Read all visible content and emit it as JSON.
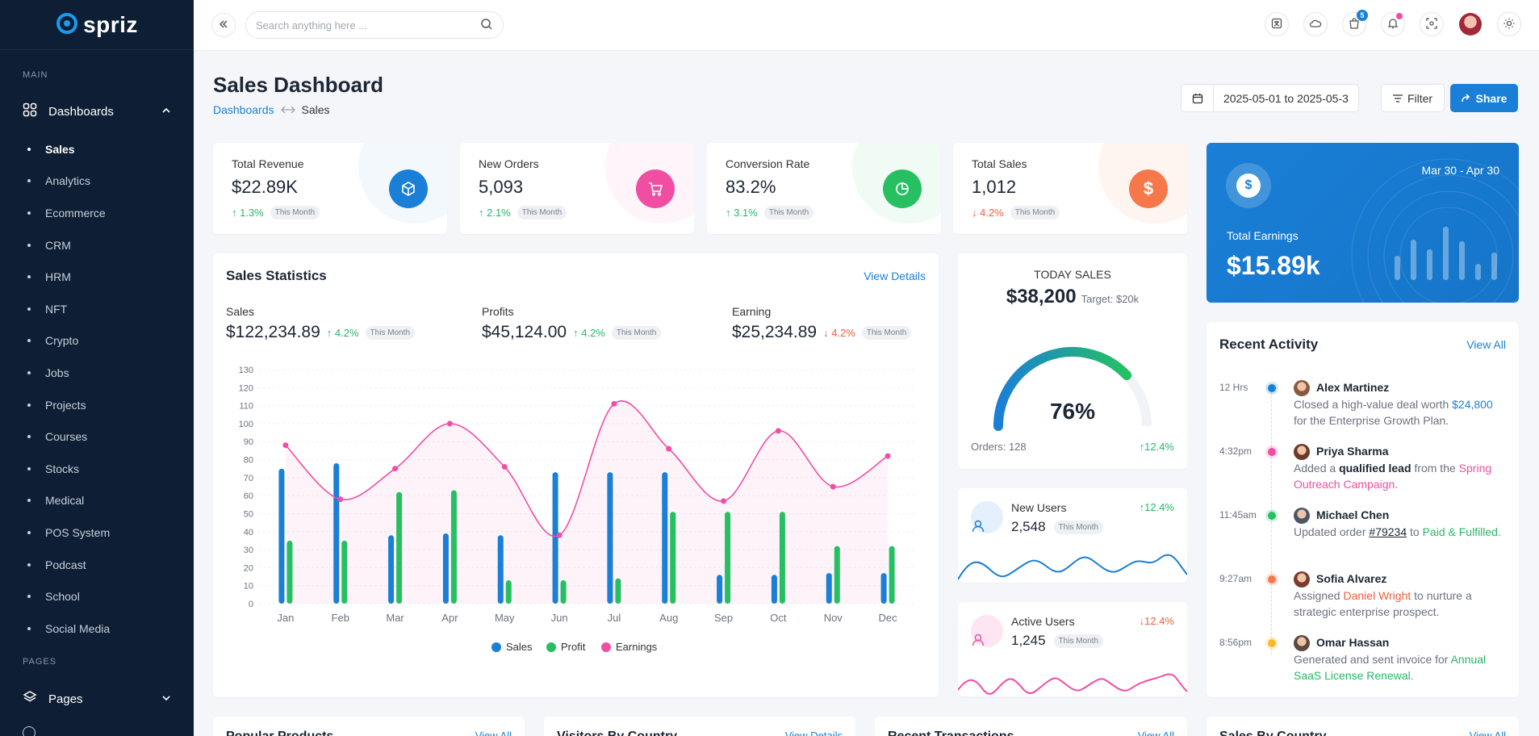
{
  "brand": {
    "name": "spriz"
  },
  "sidebar": {
    "main_label": "MAIN",
    "dashboards_label": "Dashboards",
    "items": [
      {
        "label": "Sales",
        "active": true
      },
      {
        "label": "Analytics"
      },
      {
        "label": "Ecommerce"
      },
      {
        "label": "CRM"
      },
      {
        "label": "HRM"
      },
      {
        "label": "NFT"
      },
      {
        "label": "Crypto"
      },
      {
        "label": "Jobs"
      },
      {
        "label": "Projects"
      },
      {
        "label": "Courses"
      },
      {
        "label": "Stocks"
      },
      {
        "label": "Medical"
      },
      {
        "label": "POS System"
      },
      {
        "label": "Podcast"
      },
      {
        "label": "School"
      },
      {
        "label": "Social Media"
      }
    ],
    "pages_label": "PAGES",
    "pages_item": "Pages"
  },
  "header": {
    "search_placeholder": "Search anything here ...",
    "cart_badge": "5"
  },
  "page": {
    "title": "Sales Dashboard",
    "breadcrumb_parent": "Dashboards",
    "breadcrumb_current": "Sales",
    "date_range": "2025-05-01 to 2025-05-3",
    "filter_label": "Filter",
    "share_label": "Share"
  },
  "kpis": [
    {
      "title": "Total Revenue",
      "value": "$22.89K",
      "change": "↑ 1.3%",
      "period": "This Month",
      "dir": "up",
      "color": "#1a7fd6",
      "icon": "box-icon"
    },
    {
      "title": "New Orders",
      "value": "5,093",
      "change": "↑ 2.1%",
      "period": "This Month",
      "dir": "up",
      "color": "#f04ea3",
      "icon": "cart-icon"
    },
    {
      "title": "Conversion Rate",
      "value": "83.2%",
      "change": "↑ 3.1%",
      "period": "This Month",
      "dir": "up",
      "color": "#26c063",
      "icon": "pie-icon"
    },
    {
      "title": "Total Sales",
      "value": "1,012",
      "change": "↓ 4.2%",
      "period": "This Month",
      "dir": "down",
      "color": "#f6784a",
      "icon": "dollar-icon"
    }
  ],
  "earnings": {
    "date": "Mar 30 - Apr 30",
    "label": "Total Earnings",
    "value": "$15.89k"
  },
  "stats": {
    "title": "Sales Statistics",
    "view_label": "View Details",
    "subs": [
      {
        "label": "Sales",
        "value": "$122,234.89",
        "change": "↑ 4.2%",
        "period": "This Month",
        "dir": "up"
      },
      {
        "label": "Profits",
        "value": "$45,124.00",
        "change": "↑ 4.2%",
        "period": "This Month",
        "dir": "up"
      },
      {
        "label": "Earning",
        "value": "$25,234.89",
        "change": "↓ 4.2%",
        "period": "This Month",
        "dir": "down"
      }
    ]
  },
  "chart_data": {
    "type": "bar",
    "categories": [
      "Jan",
      "Feb",
      "Mar",
      "Apr",
      "May",
      "Jun",
      "Jul",
      "Aug",
      "Sep",
      "Oct",
      "Nov",
      "Dec"
    ],
    "ylim": [
      0,
      130
    ],
    "yticks": [
      0,
      10,
      20,
      30,
      40,
      50,
      60,
      70,
      80,
      90,
      100,
      110,
      120,
      130
    ],
    "series": [
      {
        "name": "Sales",
        "type": "bar",
        "color": "#1a7fd6",
        "values": [
          75,
          78,
          38,
          39,
          38,
          73,
          73,
          73,
          16,
          16,
          17,
          17
        ]
      },
      {
        "name": "Profit",
        "type": "bar",
        "color": "#26c063",
        "values": [
          35,
          35,
          62,
          63,
          13,
          13,
          14,
          51,
          51,
          51,
          32,
          32
        ]
      },
      {
        "name": "Earnings",
        "type": "line",
        "color": "#f04ea3",
        "values": [
          88,
          58,
          75,
          100,
          76,
          38,
          111,
          86,
          57,
          96,
          65,
          82
        ]
      }
    ]
  },
  "today": {
    "label": "TODAY SALES",
    "value": "$38,200",
    "target": "Target: $20k",
    "pct_label": "76%",
    "pct": 76,
    "orders": "Orders: 128",
    "change": "↑12.4%"
  },
  "mini_cards": [
    {
      "title": "New Users",
      "value": "2,548",
      "period": "This Month",
      "change": "↑12.4%",
      "dir": "up",
      "color": "#1a7fd6"
    },
    {
      "title": "Active Users",
      "value": "1,245",
      "period": "This Month",
      "change": "↓12.4%",
      "dir": "down",
      "color": "#f04ea3"
    }
  ],
  "activity": {
    "title": "Recent Activity",
    "view_label": "View All",
    "items": [
      {
        "time": "12 Hrs",
        "name": "Alex Martinez",
        "dot": "#1a7fd6",
        "parts": [
          [
            "Closed a high-value deal worth ",
            "muted"
          ],
          [
            "$24,800",
            "blue"
          ],
          [
            " for the Enterprise Growth Plan.",
            "muted"
          ]
        ]
      },
      {
        "time": "4:32pm",
        "name": "Priya Sharma",
        "dot": "#f04ea3",
        "parts": [
          [
            "Added a ",
            "muted"
          ],
          [
            "qualified lead",
            "dark"
          ],
          [
            " from the ",
            "muted"
          ],
          [
            "Spring Outreach Campaign.",
            "pink"
          ]
        ]
      },
      {
        "time": "11:45am",
        "name": "Michael Chen",
        "dot": "#26c063",
        "parts": [
          [
            "Updated order ",
            "muted"
          ],
          [
            "#79234",
            "link"
          ],
          [
            " to ",
            "muted"
          ],
          [
            "Paid & Fulfilled.",
            "green"
          ]
        ]
      },
      {
        "time": "9:27am",
        "name": "Sofia Alvarez",
        "dot": "#f6784a",
        "parts": [
          [
            "Assigned ",
            "muted"
          ],
          [
            "Daniel Wright",
            "orange"
          ],
          [
            " to nurture a strategic enterprise prospect.",
            "muted"
          ]
        ]
      },
      {
        "time": "8:56pm",
        "name": "Omar Hassan",
        "dot": "#f5b92b",
        "parts": [
          [
            "Generated and sent invoice for ",
            "muted"
          ],
          [
            "Annual SaaS License Renewal.",
            "green"
          ]
        ]
      }
    ]
  },
  "bottom_cards": [
    {
      "title": "Popular Products",
      "link": "View All"
    },
    {
      "title": "Visitors By Country",
      "link": "View Details"
    },
    {
      "title": "Recent Transactions",
      "link": "View All"
    },
    {
      "title": "Sales By Country",
      "link": "View All"
    }
  ]
}
